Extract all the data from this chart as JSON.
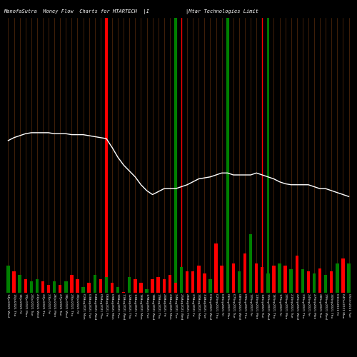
{
  "title1": "ManofaSutra  Money Flow  Charts for MTARTECH  |I",
  "title2": "|Mtar Technologies Limit",
  "background_color": "#000000",
  "bar_colors": [
    "green",
    "red",
    "green",
    "red",
    "green",
    "green",
    "red",
    "red",
    "green",
    "red",
    "green",
    "red",
    "red",
    "green",
    "red",
    "green",
    "red",
    "green",
    "red",
    "green",
    "red",
    "green",
    "red",
    "red",
    "green",
    "red",
    "red",
    "red",
    "red",
    "red",
    "green",
    "red",
    "red",
    "red",
    "red",
    "green",
    "red",
    "red",
    "green",
    "red",
    "green",
    "red",
    "green",
    "red",
    "red",
    "green",
    "red",
    "green",
    "red",
    "green",
    "red",
    "green",
    "red",
    "green",
    "red",
    "green",
    "red",
    "green",
    "red",
    "green"
  ],
  "bar_heights": [
    28,
    22,
    18,
    14,
    12,
    14,
    12,
    8,
    12,
    8,
    12,
    18,
    14,
    6,
    10,
    18,
    14,
    16,
    10,
    6,
    1,
    16,
    14,
    10,
    4,
    14,
    16,
    14,
    18,
    10,
    26,
    22,
    22,
    28,
    20,
    14,
    50,
    28,
    70,
    30,
    22,
    40,
    60,
    30,
    26,
    20,
    28,
    30,
    28,
    24,
    38,
    24,
    22,
    20,
    25,
    18,
    22,
    30,
    35,
    30
  ],
  "vertical_line_color": "#8B4513",
  "highlight_lines": [
    {
      "x": 17,
      "color": "red",
      "lw": 3
    },
    {
      "x": 29,
      "color": "green",
      "lw": 3
    },
    {
      "x": 30,
      "color": "red",
      "lw": 1
    },
    {
      "x": 38,
      "color": "green",
      "lw": 3
    },
    {
      "x": 44,
      "color": "red",
      "lw": 1
    },
    {
      "x": 45,
      "color": "green",
      "lw": 2
    }
  ],
  "line_color": "#ffffff",
  "line_y": [
    155,
    158,
    160,
    162,
    163,
    163,
    163,
    163,
    162,
    162,
    162,
    161,
    161,
    161,
    160,
    159,
    158,
    157,
    148,
    138,
    130,
    124,
    118,
    110,
    104,
    100,
    103,
    106,
    106,
    106,
    108,
    110,
    113,
    116,
    117,
    118,
    120,
    122,
    122,
    120,
    120,
    120,
    120,
    122,
    120,
    118,
    116,
    113,
    111,
    110,
    110,
    110,
    110,
    108,
    106,
    106,
    104,
    102,
    100,
    98
  ],
  "n_bars": 60,
  "tick_labels": [
    "14Jul2021 Wed",
    "15Jul2021 Thu",
    "16Jul2021 Fri",
    "19Jul2021 Mon",
    "20Jul2021 Tue",
    "21Jul2021 Wed",
    "22Jul2021 Thu",
    "23Jul2021 Fri",
    "26Jul2021 Mon",
    "27Jul2021 Tue",
    "28Jul2021 Wed",
    "29Jul2021 Thu",
    "30Jul2021 Fri",
    "02Aug2021 Mon",
    "03Aug2021 Tue",
    "04Aug2021 Wed",
    "05Aug2021 Thu",
    "06Aug2021 Fri",
    "09Aug2021 Mon",
    "10Aug2021 Tue",
    "11Aug2021 Wed",
    "12Aug2021 Thu",
    "13Aug2021 Fri",
    "16Aug2021 Mon",
    "17Aug2021 Tue",
    "18Aug2021 Wed",
    "19Aug2021 Thu",
    "20Aug2021 Fri",
    "23Aug2021 Mon",
    "24Aug2021 Tue",
    "25Aug2021 Wed",
    "26Aug2021 Thu",
    "27Aug2021 Fri",
    "30Aug2021 Mon",
    "31Aug2021 Tue",
    "01Sep2021 Wed",
    "02Sep2021 Thu",
    "03Sep2021 Fri",
    "06Sep2021 Mon",
    "07Sep2021 Tue",
    "08Sep2021 Wed",
    "09Sep2021 Thu",
    "10Sep2021 Fri",
    "13Sep2021 Mon",
    "14Sep2021 Tue",
    "15Sep2021 Wed",
    "16Sep2021 Thu",
    "17Sep2021 Fri",
    "20Sep2021 Mon",
    "21Sep2021 Tue",
    "22Sep2021 Wed",
    "23Sep2021 Thu",
    "24Sep2021 Fri",
    "27Sep2021 Mon",
    "28Sep2021 Tue",
    "29Sep2021 Wed",
    "30Sep2021 Thu",
    "01Oct2021 Fri",
    "04Oct2021 Mon",
    "05Oct2021 Tue"
  ],
  "ylim_max": 280,
  "line_scale": 1.0
}
